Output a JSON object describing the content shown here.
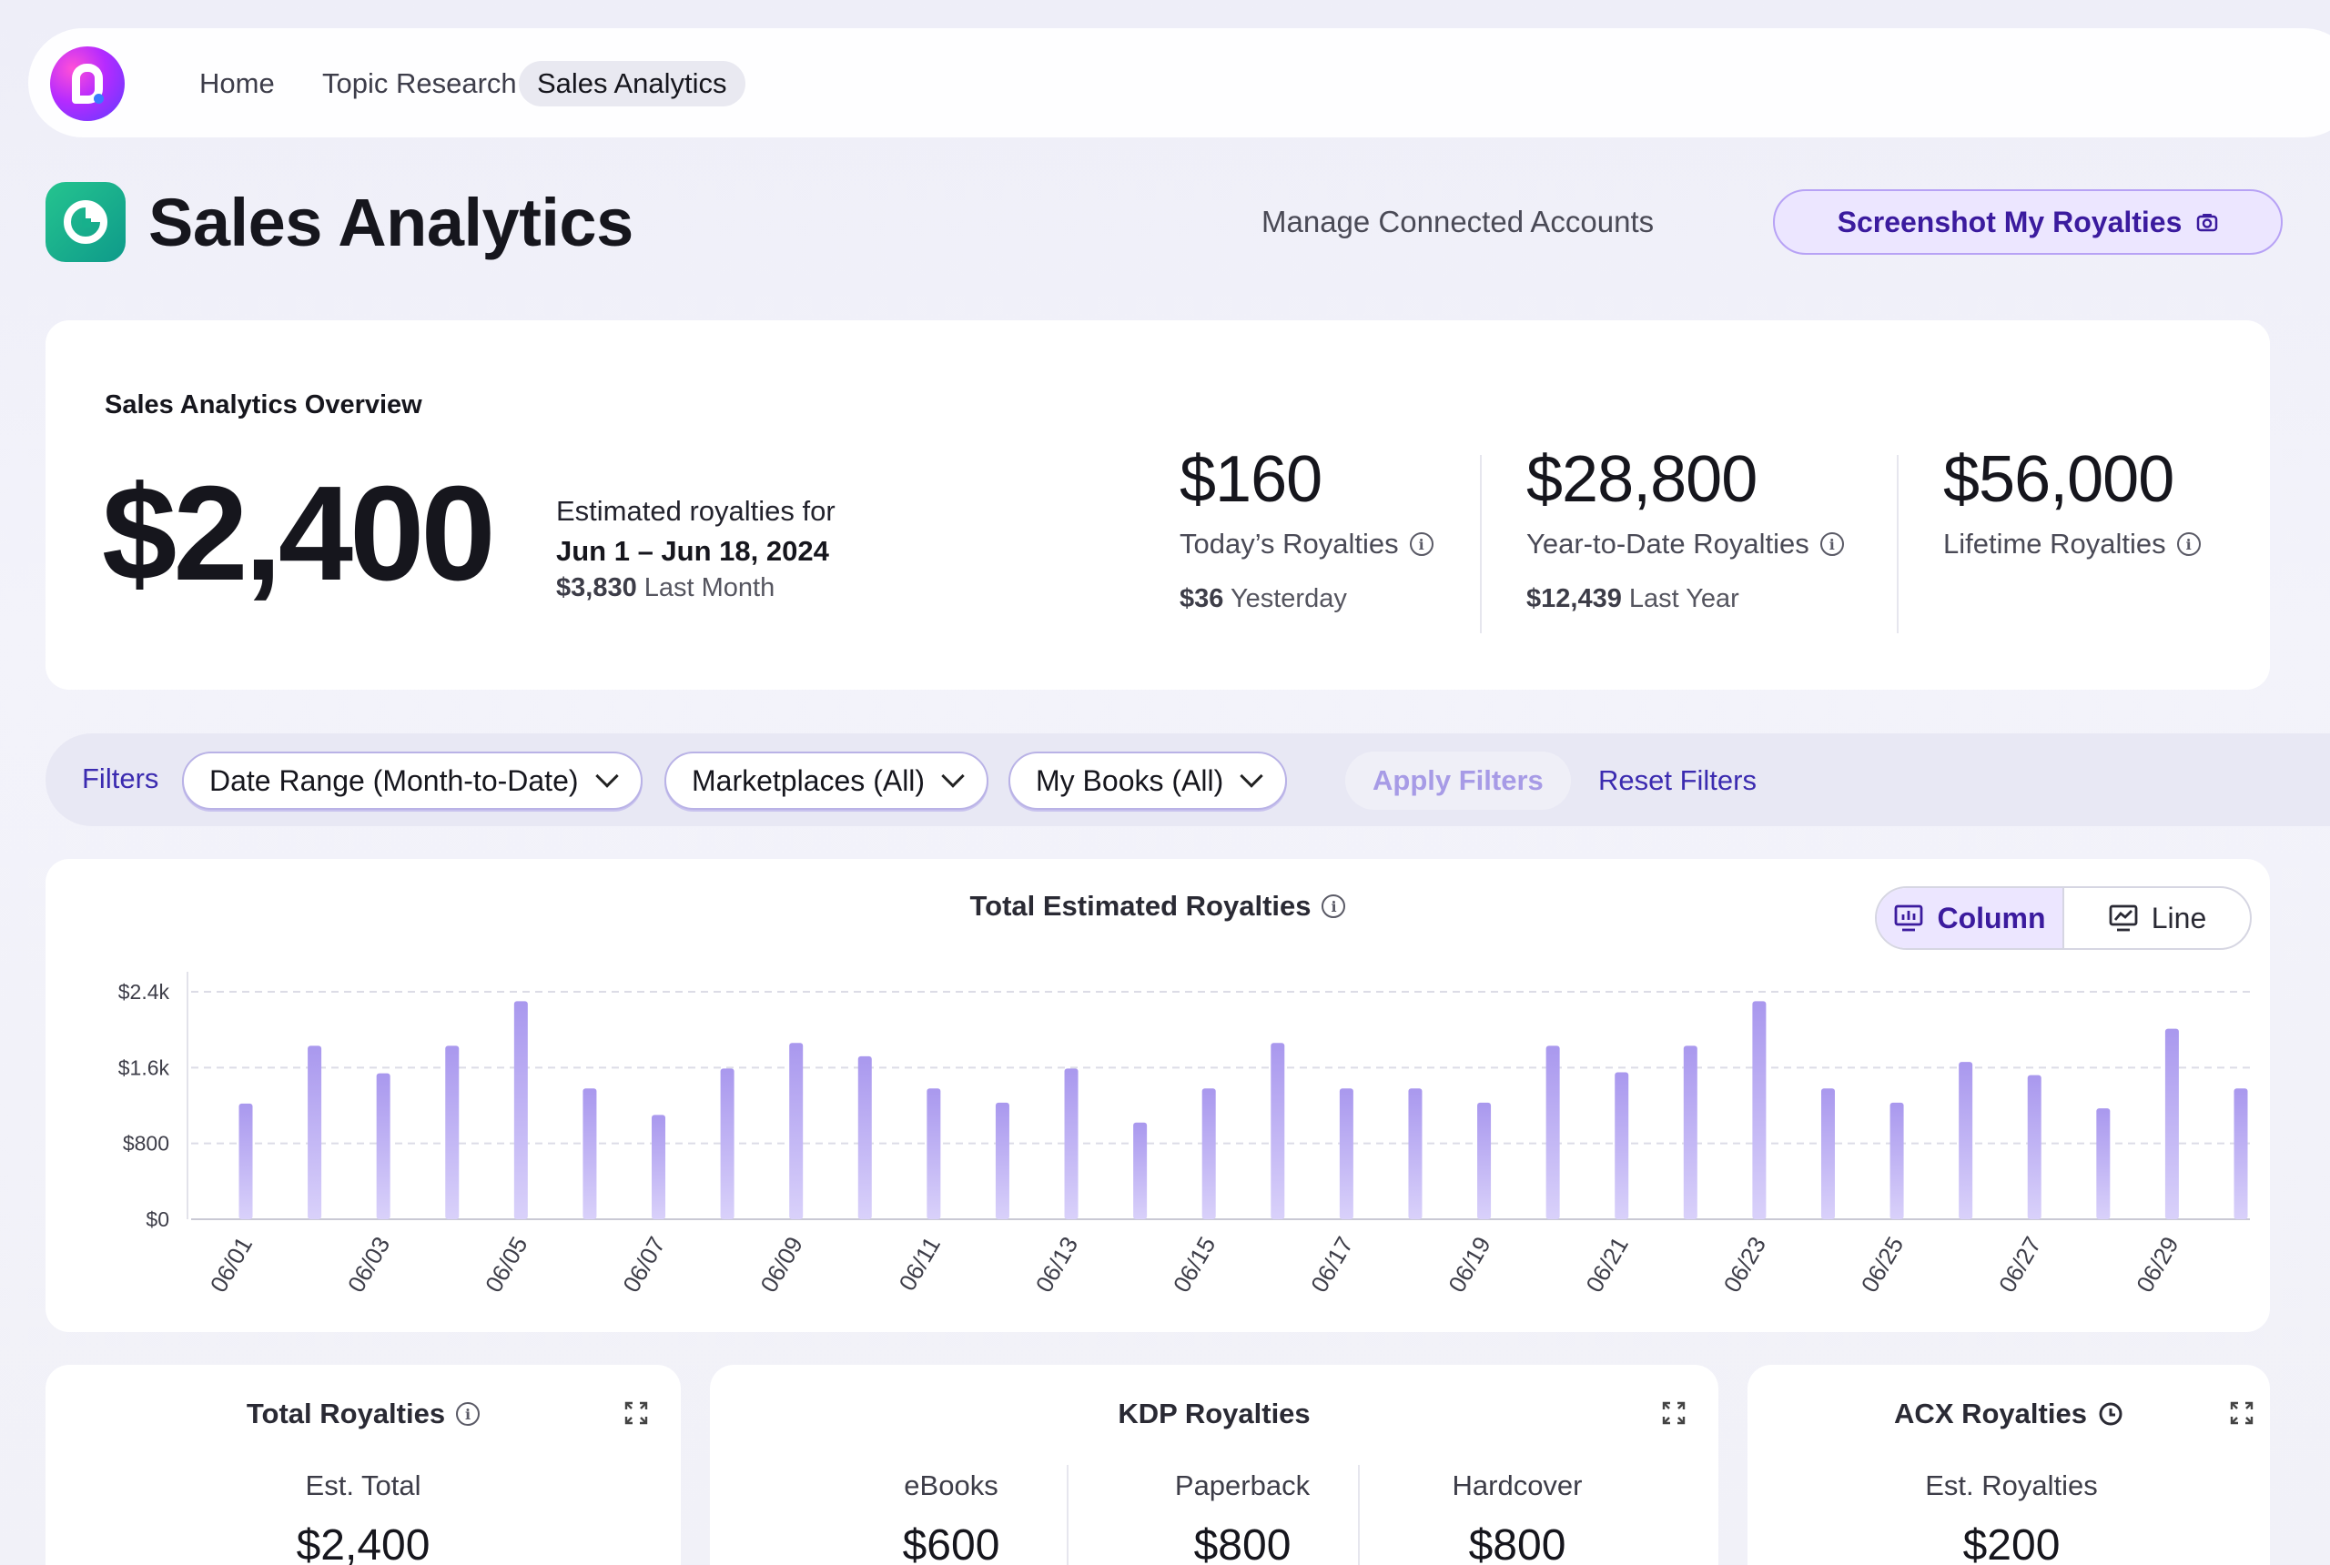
{
  "nav": {
    "items": [
      {
        "label": "Home"
      },
      {
        "label": "Topic Research"
      },
      {
        "label": "Sales Analytics",
        "active": true
      }
    ]
  },
  "header": {
    "title": "Sales Analytics",
    "manage_label": "Manage Connected Accounts",
    "screenshot_label": "Screenshot My Royalties"
  },
  "overview": {
    "title": "Sales Analytics Overview",
    "main_value": "$2,400",
    "main_caption": "Estimated royalties for",
    "date_range": "Jun 1 – Jun 18, 2024",
    "last_month_value": "$3,830",
    "last_month_label": "Last Month",
    "stats": [
      {
        "value": "$160",
        "label": "Today’s Royalties",
        "sub_value": "$36",
        "sub_label": "Yesterday"
      },
      {
        "value": "$28,800",
        "label": "Year-to-Date Royalties",
        "sub_value": "$12,439",
        "sub_label": "Last Year"
      },
      {
        "value": "$56,000",
        "label": "Lifetime Royalties",
        "sub_value": "",
        "sub_label": ""
      }
    ]
  },
  "filters": {
    "label": "Filters",
    "date_range": "Date Range (Month-to-Date)",
    "marketplaces": "Marketplaces (All)",
    "books": "My Books (All)",
    "apply_label": "Apply Filters",
    "reset_label": "Reset Filters"
  },
  "chart_toggle": {
    "column_label": "Column",
    "line_label": "Line",
    "selected": "Column"
  },
  "chart_data": {
    "type": "bar",
    "title": "Total Estimated Royalties",
    "xlabel": "",
    "ylabel": "",
    "ylim": [
      0,
      2400
    ],
    "y_ticks": [
      "$0",
      "$800",
      "$1.6k",
      "$2.4k"
    ],
    "y_tick_values": [
      0,
      800,
      1600,
      2400
    ],
    "grid": true,
    "bar_color": "#b9aaf0",
    "categories": [
      "06/01",
      "06/02",
      "06/03",
      "06/04",
      "06/05",
      "06/06",
      "06/07",
      "06/08",
      "06/09",
      "06/10",
      "06/11",
      "06/12",
      "06/13",
      "06/14",
      "06/15",
      "06/16",
      "06/17",
      "06/18",
      "06/19",
      "06/20",
      "06/21",
      "06/22",
      "06/23",
      "06/24",
      "06/25",
      "06/26",
      "06/27",
      "06/28",
      "06/29",
      "06/30"
    ],
    "x_tick_labels": [
      "06/01",
      "06/03",
      "06/05",
      "06/07",
      "06/09",
      "06/11",
      "06/13",
      "06/15",
      "06/17",
      "06/19",
      "06/21",
      "06/23",
      "06/25",
      "06/27",
      "06/29"
    ],
    "values": [
      1220,
      1830,
      1540,
      1830,
      2300,
      1380,
      1100,
      1590,
      1860,
      1720,
      1380,
      1230,
      1590,
      1020,
      1380,
      1860,
      1380,
      1380,
      1230,
      1830,
      1550,
      1830,
      2300,
      1380,
      1230,
      1660,
      1520,
      1170,
      2010,
      1380
    ]
  },
  "bottom_cards": {
    "total": {
      "title": "Total Royalties",
      "label": "Est. Total",
      "value": "$2,400"
    },
    "kdp": {
      "title": "KDP Royalties",
      "cols": [
        {
          "label": "eBooks",
          "value": "$600"
        },
        {
          "label": "Paperback",
          "value": "$800"
        },
        {
          "label": "Hardcover",
          "value": "$800"
        }
      ]
    },
    "acx": {
      "title": "ACX Royalties",
      "label": "Est. Royalties",
      "value": "$200"
    }
  }
}
